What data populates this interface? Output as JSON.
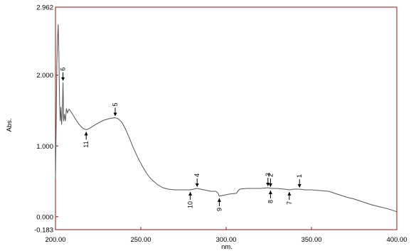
{
  "chart_data": {
    "type": "line",
    "title": "",
    "xlabel": "nm.",
    "ylabel": "Abs.",
    "xlim": [
      200.0,
      400.0
    ],
    "ylim": [
      -0.183,
      2.962
    ],
    "grid": false,
    "x_ticks": [
      200,
      250,
      300,
      350,
      400
    ],
    "x_tick_labels": [
      "200.00",
      "250.00",
      "300.00",
      "350.00",
      "400.00"
    ],
    "y_ticks": [
      2.962,
      2.0,
      1.0,
      0.0,
      -0.183
    ],
    "y_tick_labels": [
      "2.962",
      "2.000",
      "1.000",
      "0.000",
      "-0.183"
    ],
    "series": [
      {
        "points": [
          [
            200.0,
            0.55
          ],
          [
            200.4,
            1.3
          ],
          [
            200.8,
            2.15
          ],
          [
            201.2,
            2.5
          ],
          [
            201.6,
            2.72
          ],
          [
            202.0,
            2.3
          ],
          [
            202.4,
            1.6
          ],
          [
            202.8,
            1.35
          ],
          [
            203.2,
            1.55
          ],
          [
            203.6,
            1.3
          ],
          [
            204.0,
            1.45
          ],
          [
            204.4,
            1.9
          ],
          [
            204.8,
            1.35
          ],
          [
            205.2,
            1.45
          ],
          [
            205.8,
            1.35
          ],
          [
            206.4,
            1.53
          ],
          [
            207.0,
            1.47
          ],
          [
            208.0,
            1.52
          ],
          [
            210.0,
            1.45
          ],
          [
            212.0,
            1.37
          ],
          [
            214.0,
            1.3
          ],
          [
            216.0,
            1.25
          ],
          [
            218.0,
            1.23
          ],
          [
            220.0,
            1.25
          ],
          [
            224.0,
            1.31
          ],
          [
            228.0,
            1.36
          ],
          [
            232.0,
            1.39
          ],
          [
            235.0,
            1.4
          ],
          [
            237.0,
            1.38
          ],
          [
            239.0,
            1.33
          ],
          [
            241.0,
            1.24
          ],
          [
            243.0,
            1.13
          ],
          [
            245.0,
            1.01
          ],
          [
            247.0,
            0.9
          ],
          [
            249.0,
            0.8
          ],
          [
            251.0,
            0.71
          ],
          [
            253.0,
            0.63
          ],
          [
            255.0,
            0.56
          ],
          [
            257.0,
            0.51
          ],
          [
            260.0,
            0.45
          ],
          [
            263.0,
            0.41
          ],
          [
            266.0,
            0.39
          ],
          [
            270.0,
            0.38
          ],
          [
            275.0,
            0.38
          ],
          [
            279.0,
            0.38
          ],
          [
            283.0,
            0.4
          ],
          [
            287.0,
            0.38
          ],
          [
            291.0,
            0.36
          ],
          [
            294.0,
            0.36
          ],
          [
            295.3,
            0.33
          ],
          [
            296.0,
            0.29
          ],
          [
            298.0,
            0.3
          ],
          [
            302.0,
            0.32
          ],
          [
            306.0,
            0.33
          ],
          [
            306.8,
            0.36
          ],
          [
            308.0,
            0.39
          ],
          [
            312.0,
            0.4
          ],
          [
            316.0,
            0.4
          ],
          [
            320.0,
            0.4
          ],
          [
            324.5,
            0.41
          ],
          [
            327.0,
            0.4
          ],
          [
            330.0,
            0.4
          ],
          [
            334.0,
            0.39
          ],
          [
            337.0,
            0.38
          ],
          [
            340.0,
            0.39
          ],
          [
            343.0,
            0.39
          ],
          [
            346.0,
            0.38
          ],
          [
            350.0,
            0.38
          ],
          [
            355.0,
            0.37
          ],
          [
            360.0,
            0.36
          ],
          [
            365.0,
            0.32
          ],
          [
            370.0,
            0.28
          ],
          [
            375.0,
            0.25
          ],
          [
            380.0,
            0.21
          ],
          [
            385.0,
            0.17
          ],
          [
            390.0,
            0.14
          ],
          [
            395.0,
            0.11
          ],
          [
            400.0,
            0.07
          ]
        ]
      }
    ],
    "peaks": [
      {
        "label": "1",
        "x": 343.0,
        "y": 0.39,
        "type": "peak"
      },
      {
        "label": "2",
        "x": 326.0,
        "y": 0.4,
        "type": "peak"
      },
      {
        "label": "3",
        "x": 324.5,
        "y": 0.41,
        "type": "peak"
      },
      {
        "label": "4",
        "x": 283.0,
        "y": 0.4,
        "type": "peak"
      },
      {
        "label": "5",
        "x": 235.0,
        "y": 1.4,
        "type": "peak"
      },
      {
        "label": "6",
        "x": 204.4,
        "y": 1.9,
        "type": "peak"
      },
      {
        "label": "7",
        "x": 337.0,
        "y": 0.38,
        "type": "valley"
      },
      {
        "label": "8",
        "x": 326.0,
        "y": 0.4,
        "type": "valley"
      },
      {
        "label": "9",
        "x": 296.0,
        "y": 0.29,
        "type": "valley"
      },
      {
        "label": "10",
        "x": 279.0,
        "y": 0.38,
        "type": "valley"
      },
      {
        "label": "11",
        "x": 218.0,
        "y": 1.23,
        "type": "valley"
      }
    ],
    "colors": {
      "frame": "#8b1a1a",
      "line": "#555555",
      "text": "#000000"
    }
  }
}
